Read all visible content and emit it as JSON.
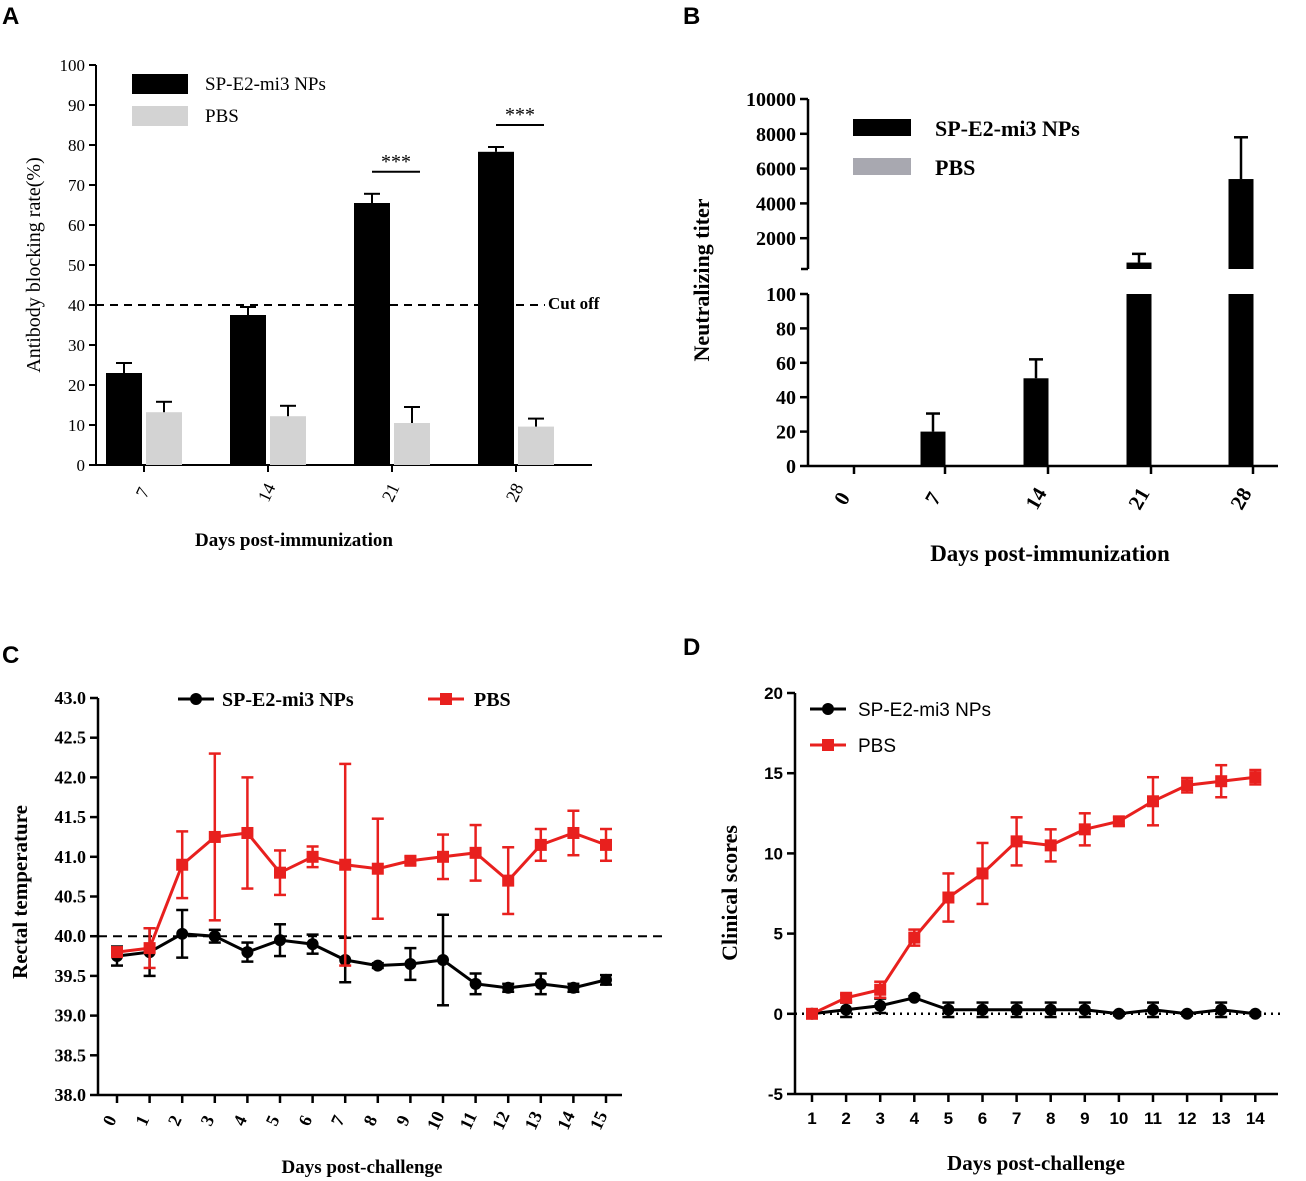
{
  "colors": {
    "black": "#000000",
    "grey": "#d3d3d3",
    "grey_b": "#a8a8b0",
    "red": "#e8201e"
  },
  "chart_data": [
    {
      "panel": "A",
      "type": "bar",
      "ylabel": "Antibody blocking rate(%)",
      "xlabel": "Days post-immunization",
      "ylim": [
        0,
        100
      ],
      "yticks": [
        "0",
        "10",
        "20",
        "30",
        "40",
        "50",
        "60",
        "70",
        "80",
        "90",
        "100"
      ],
      "categories": [
        "7",
        "14",
        "21",
        "28"
      ],
      "series": [
        {
          "name": "SP-E2-mi3 NPs",
          "values": [
            23,
            37.5,
            65.5,
            78.3
          ],
          "errors": [
            2.5,
            2,
            2.3,
            1.2
          ]
        },
        {
          "name": "PBS",
          "values": [
            13.2,
            12.2,
            10.5,
            9.6
          ],
          "errors": [
            2.6,
            2.6,
            4,
            2
          ]
        }
      ],
      "cutoff": {
        "value": 40,
        "label": "Cut off"
      },
      "significance": [
        {
          "category": "21",
          "label": "***"
        },
        {
          "category": "28",
          "label": "***"
        }
      ]
    },
    {
      "panel": "B",
      "type": "bar",
      "ylabel": "Neutralizing titer",
      "xlabel": "Days post-immunization",
      "axis_break": true,
      "lower_yticks": [
        "0",
        "20",
        "40",
        "60",
        "80",
        "100"
      ],
      "upper_yticks": [
        "2000",
        "4000",
        "6000",
        "8000",
        "10000"
      ],
      "categories": [
        "0",
        "7",
        "14",
        "21",
        "28"
      ],
      "series": [
        {
          "name": "SP-E2-mi3 NPs",
          "values": [
            0,
            20,
            51,
            600,
            5400
          ],
          "errors": [
            0,
            10.5,
            11,
            500,
            2400
          ]
        },
        {
          "name": "PBS",
          "values": [
            0,
            0,
            0,
            0,
            0
          ],
          "errors": [
            0,
            0,
            0,
            0,
            0
          ]
        }
      ]
    },
    {
      "panel": "C",
      "type": "line",
      "ylabel": "Rectal temperature",
      "xlabel": "Days post-challenge",
      "ylim": [
        38.0,
        43.0
      ],
      "yticks": [
        "38.0",
        "38.5",
        "39.0",
        "39.5",
        "40.0",
        "40.5",
        "41.0",
        "41.5",
        "42.0",
        "42.5",
        "43.0"
      ],
      "x": [
        "0",
        "1",
        "2",
        "3",
        "4",
        "5",
        "6",
        "7",
        "8",
        "9",
        "10",
        "11",
        "12",
        "13",
        "14",
        "15"
      ],
      "reference": 40.0,
      "series": [
        {
          "name": "SP-E2-mi3 NPs",
          "values": [
            39.75,
            39.8,
            40.03,
            40.0,
            39.8,
            39.95,
            39.9,
            39.7,
            39.63,
            39.65,
            39.7,
            39.4,
            39.35,
            39.4,
            39.35,
            39.45
          ],
          "errors": [
            0.12,
            0.3,
            0.3,
            0.08,
            0.12,
            0.2,
            0.12,
            0.28,
            0.03,
            0.2,
            0.57,
            0.13,
            0.05,
            0.13,
            0.05,
            0.06
          ]
        },
        {
          "name": "PBS",
          "values": [
            39.8,
            39.85,
            40.9,
            41.25,
            41.3,
            40.8,
            41.0,
            40.9,
            40.85,
            40.95,
            41.0,
            41.05,
            40.7,
            41.15,
            41.3,
            41.15
          ],
          "errors": [
            0.05,
            0.25,
            0.42,
            1.05,
            0.7,
            0.28,
            0.13,
            1.27,
            0.63,
            0.05,
            0.28,
            0.35,
            0.42,
            0.2,
            0.28,
            0.2
          ]
        }
      ]
    },
    {
      "panel": "D",
      "type": "line",
      "ylabel": "Clinical scores",
      "xlabel": "Days post-challenge",
      "ylim": [
        -5,
        20
      ],
      "yticks": [
        "-5",
        "0",
        "5",
        "10",
        "15",
        "20"
      ],
      "x": [
        "1",
        "2",
        "3",
        "4",
        "5",
        "6",
        "7",
        "8",
        "9",
        "10",
        "11",
        "12",
        "13",
        "14"
      ],
      "reference": 0,
      "series": [
        {
          "name": "SP-E2-mi3 NPs",
          "values": [
            0,
            0.25,
            0.5,
            1.0,
            0.25,
            0.25,
            0.25,
            0.25,
            0.25,
            0,
            0.25,
            0,
            0.25,
            0
          ],
          "errors": [
            0.15,
            0.45,
            0.45,
            0.1,
            0.45,
            0.45,
            0.45,
            0.45,
            0.45,
            0.1,
            0.45,
            0.1,
            0.45,
            0.1
          ]
        },
        {
          "name": "PBS",
          "values": [
            0,
            1.0,
            1.5,
            4.75,
            7.25,
            8.75,
            10.75,
            10.5,
            11.5,
            12.0,
            13.25,
            14.25,
            14.5,
            14.75
          ],
          "errors": [
            0.15,
            0.2,
            0.5,
            0.5,
            1.5,
            1.9,
            1.5,
            1.0,
            1.0,
            0.25,
            1.5,
            0.45,
            1.0,
            0.45
          ]
        }
      ]
    }
  ],
  "panel_labels": [
    "A",
    "B",
    "C",
    "D"
  ]
}
